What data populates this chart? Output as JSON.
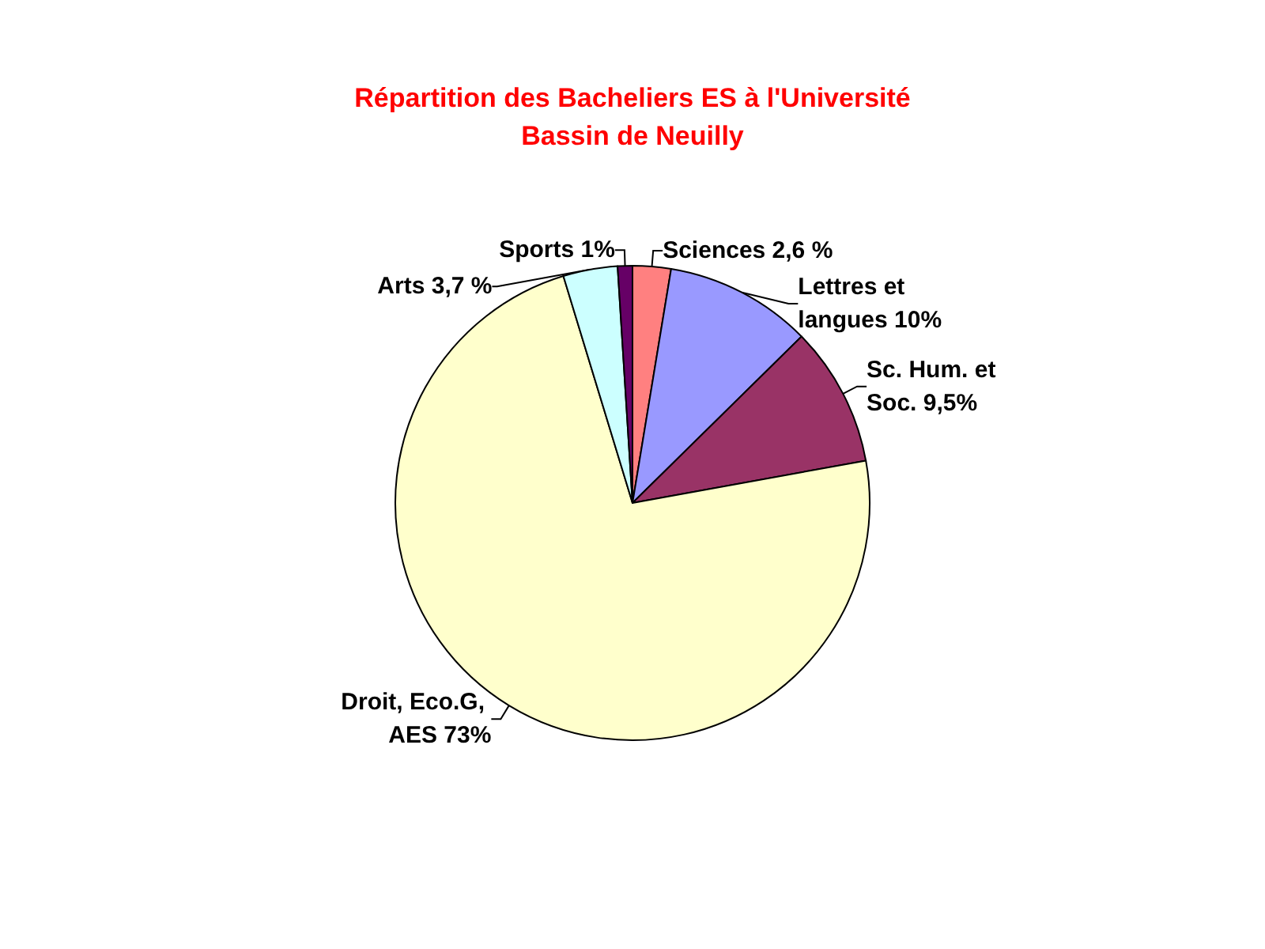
{
  "chart_data": {
    "type": "pie",
    "title": "Répartition des Bacheliers ES à l'Université\nBassin de Neuilly",
    "categories": [
      "Sciences",
      "Lettres et langues",
      "Sc. Hum. et Soc.",
      "Droit, Eco.G, AES",
      "Arts",
      "Sports"
    ],
    "values": [
      2.6,
      10,
      9.5,
      73,
      3.7,
      1
    ],
    "value_labels": [
      "2,6 %",
      "10%",
      "9,5%",
      "73%",
      "3,7 %",
      "1%"
    ],
    "colors": [
      "#ff8080",
      "#9999ff",
      "#993366",
      "#ffffcc",
      "#ccffff",
      "#660066"
    ],
    "legend": false
  }
}
